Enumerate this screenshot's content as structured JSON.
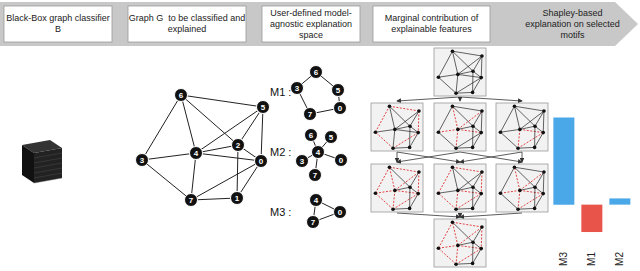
{
  "header": {
    "steps": [
      "Black-Box graph classifier B",
      "Graph G  to be classified and explained",
      "User-defined model-agnostic explanation space",
      "Marginal contribution of explainable features",
      "Shapley-based explanation on selected motifs"
    ]
  },
  "graph": {
    "nodes": [
      "0",
      "1",
      "2",
      "3",
      "4",
      "5",
      "6",
      "7"
    ],
    "edges": [
      [
        6,
        5
      ],
      [
        5,
        0
      ],
      [
        0,
        7
      ],
      [
        7,
        3
      ],
      [
        3,
        6
      ],
      [
        4,
        6
      ],
      [
        4,
        5
      ],
      [
        4,
        3
      ],
      [
        4,
        0
      ],
      [
        4,
        7
      ],
      [
        4,
        2
      ],
      [
        2,
        0
      ],
      [
        2,
        1
      ],
      [
        1,
        7
      ],
      [
        1,
        0
      ],
      [
        2,
        5
      ],
      [
        6,
        2
      ]
    ]
  },
  "motifs": [
    {
      "label": "M1 :",
      "nodes": [
        "6",
        "3",
        "5",
        "0",
        "7"
      ],
      "edges": [
        [
          0,
          2
        ],
        [
          2,
          3
        ],
        [
          3,
          4
        ],
        [
          4,
          1
        ],
        [
          1,
          0
        ]
      ]
    },
    {
      "label": "M2 :",
      "nodes": [
        "4",
        "6",
        "5",
        "3",
        "0",
        "7"
      ],
      "edges": [
        [
          0,
          1
        ],
        [
          0,
          2
        ],
        [
          0,
          3
        ],
        [
          0,
          4
        ],
        [
          0,
          5
        ]
      ]
    },
    {
      "label": "M3 :",
      "nodes": [
        "4",
        "0",
        "7"
      ],
      "edges": [
        [
          0,
          1
        ],
        [
          1,
          2
        ],
        [
          2,
          0
        ]
      ]
    }
  ],
  "chart_data": {
    "type": "bar",
    "categories": [
      "M3",
      "M1",
      "M2"
    ],
    "values": [
      0.7,
      -0.22,
      0.05
    ],
    "colors": [
      "#4aa8e8",
      "#e8534a",
      "#4aa8e8"
    ],
    "ylim": [
      -0.3,
      0.8
    ],
    "tick_labels": "x"
  }
}
